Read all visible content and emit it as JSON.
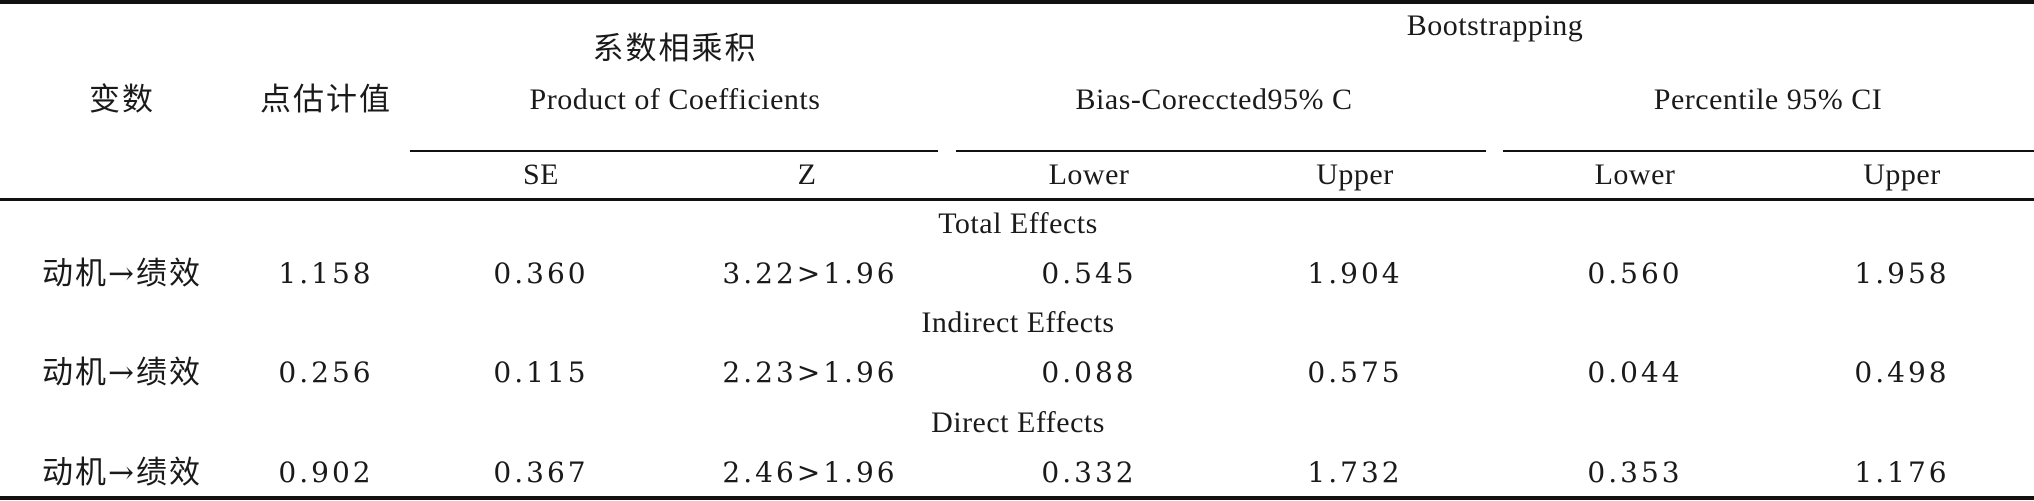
{
  "table": {
    "header": {
      "variable": "变数",
      "point_estimate": "点估计值",
      "product_cn": "系数相乘积",
      "product_en": "Product of Coefficients",
      "bootstrapping": "Bootstrapping",
      "bias_corrected": "Bias-Coreccted95% C",
      "percentile": "Percentile 95% CI",
      "se": "SE",
      "z": "Z",
      "bc_lower": "Lower",
      "bc_upper": "Upper",
      "pct_lower": "Lower",
      "pct_upper": "Upper"
    },
    "sections": [
      {
        "title": "Total Effects",
        "row": {
          "variable": "动机→绩效",
          "point_estimate": "1.158",
          "se": "0.360",
          "z": "3.22>1.96",
          "bc_lower": "0.545",
          "bc_upper": "1.904",
          "pct_lower": "0.560",
          "pct_upper": "1.958"
        }
      },
      {
        "title": "Indirect Effects",
        "row": {
          "variable": "动机→绩效",
          "point_estimate": "0.256",
          "se": "0.115",
          "z": "2.23>1.96",
          "bc_lower": "0.088",
          "bc_upper": "0.575",
          "pct_lower": "0.044",
          "pct_upper": "0.498"
        }
      },
      {
        "title": "Direct Effects",
        "row": {
          "variable": "动机→绩效",
          "point_estimate": "0.902",
          "se": "0.367",
          "z": "2.46>1.96",
          "bc_lower": "0.332",
          "bc_upper": "1.732",
          "pct_lower": "0.353",
          "pct_upper": "1.176"
        }
      }
    ]
  }
}
